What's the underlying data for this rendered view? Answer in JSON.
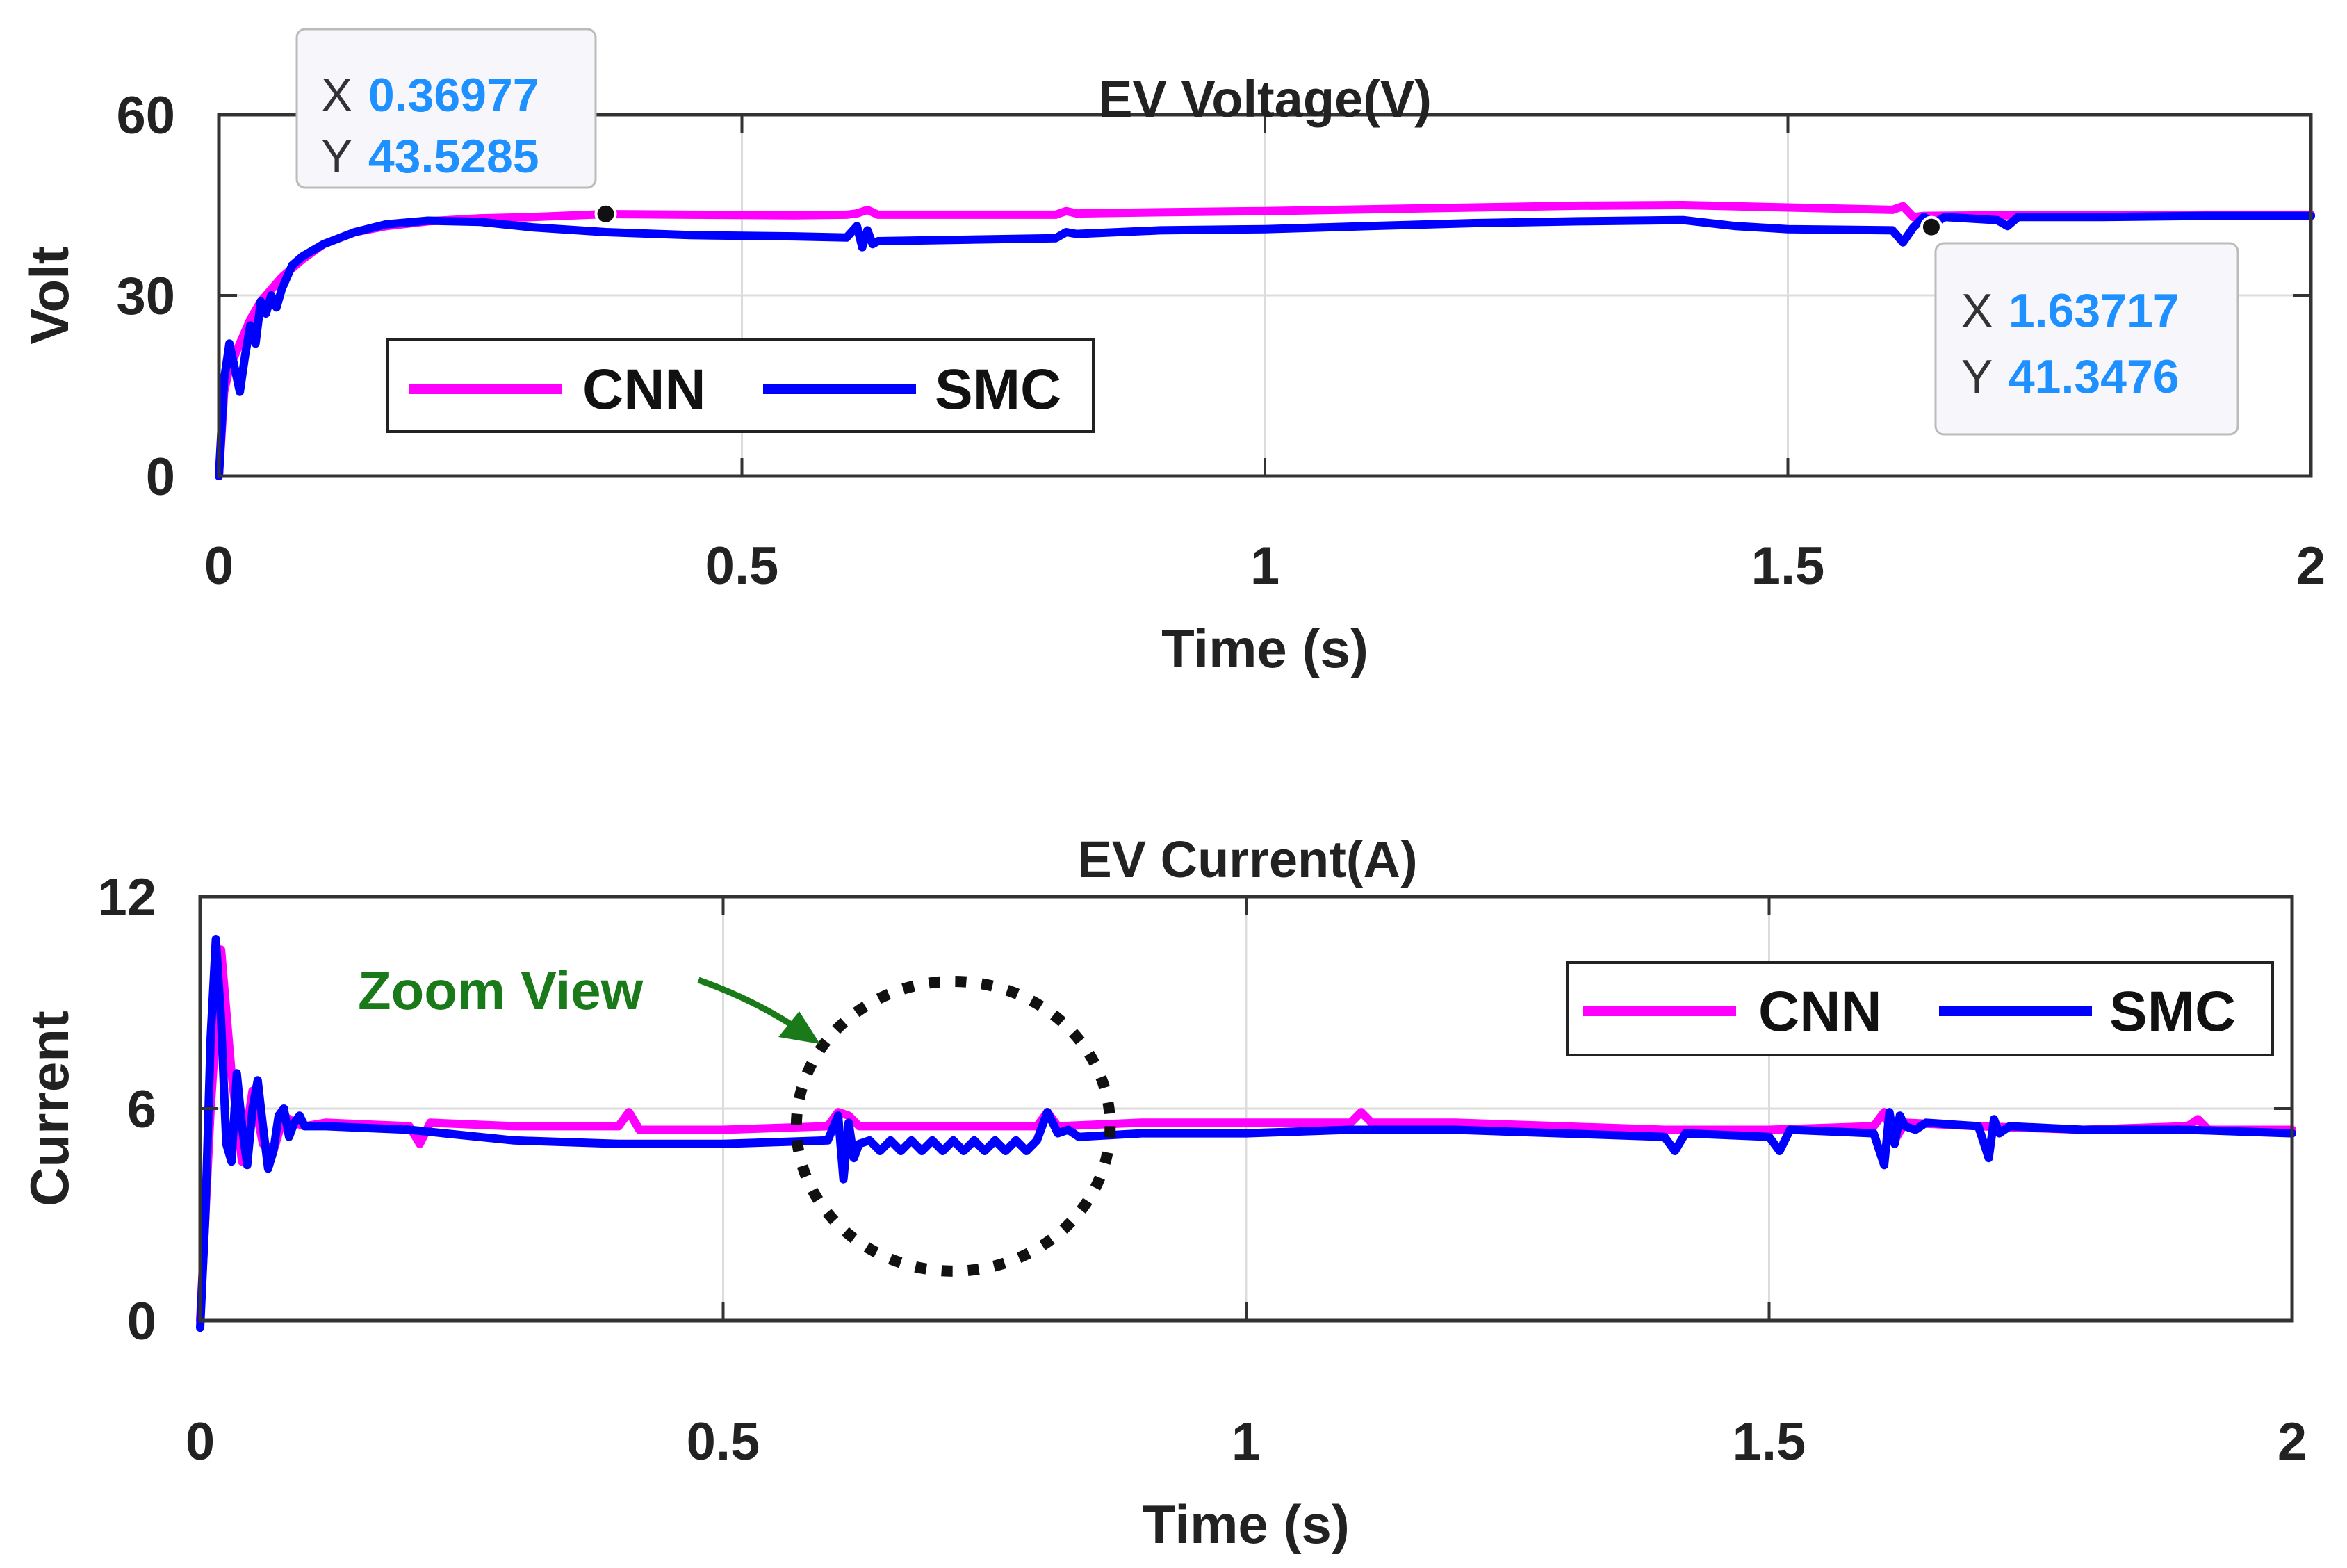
{
  "chart_data": [
    {
      "type": "line",
      "title": "EV Voltage(V)",
      "xlabel": "Time (s)",
      "ylabel": "Volt",
      "xlim": [
        0,
        2
      ],
      "ylim": [
        0,
        60
      ],
      "xticks": [
        0,
        0.5,
        1,
        1.5,
        2
      ],
      "xtick_labels": [
        "0",
        "0.5",
        "1",
        "1.5",
        "2"
      ],
      "yticks": [
        0,
        30,
        60
      ],
      "ytick_labels": [
        "0",
        "30",
        "60"
      ],
      "grid": true,
      "legend_position": "middle-left",
      "series": [
        {
          "name": "CNN",
          "color": "#ff00ff",
          "x": [
            0,
            0.005,
            0.01,
            0.02,
            0.03,
            0.04,
            0.05,
            0.06,
            0.08,
            0.1,
            0.13,
            0.16,
            0.2,
            0.25,
            0.3,
            0.37,
            0.45,
            0.55,
            0.6,
            0.61,
            0.62,
            0.63,
            0.7,
            0.8,
            0.81,
            0.82,
            0.9,
            1.0,
            1.1,
            1.2,
            1.3,
            1.4,
            1.5,
            1.6,
            1.61,
            1.62,
            1.63,
            1.7,
            1.8,
            1.9,
            2.0
          ],
          "y": [
            0,
            14,
            18,
            22,
            26,
            29,
            31,
            33,
            36,
            38.5,
            40.5,
            41.5,
            42.3,
            42.8,
            43.0,
            43.5,
            43.4,
            43.3,
            43.4,
            43.6,
            44.2,
            43.4,
            43.4,
            43.4,
            44.0,
            43.6,
            43.8,
            44.0,
            44.3,
            44.6,
            44.9,
            45.0,
            44.6,
            44.2,
            44.8,
            43.0,
            43.2,
            43.3,
            43.3,
            43.4,
            43.4
          ]
        },
        {
          "name": "SMC",
          "color": "#0000ff",
          "x": [
            0,
            0.005,
            0.01,
            0.015,
            0.02,
            0.025,
            0.03,
            0.035,
            0.04,
            0.045,
            0.05,
            0.055,
            0.06,
            0.065,
            0.07,
            0.08,
            0.1,
            0.13,
            0.16,
            0.2,
            0.25,
            0.3,
            0.37,
            0.45,
            0.55,
            0.6,
            0.61,
            0.615,
            0.62,
            0.625,
            0.63,
            0.7,
            0.8,
            0.81,
            0.82,
            0.9,
            1.0,
            1.1,
            1.2,
            1.3,
            1.4,
            1.45,
            1.5,
            1.6,
            1.61,
            1.62,
            1.63,
            1.64,
            1.65,
            1.7,
            1.71,
            1.72,
            1.8,
            1.9,
            2.0
          ],
          "y": [
            0,
            16,
            22,
            18,
            14,
            20,
            25,
            22,
            29,
            27,
            30,
            28,
            31,
            33,
            35,
            36.5,
            38.5,
            40.5,
            41.8,
            42.4,
            42.2,
            41.3,
            40.5,
            40.0,
            39.8,
            39.6,
            41.5,
            38.0,
            40.8,
            38.5,
            39.0,
            39.2,
            39.5,
            40.5,
            40.2,
            40.8,
            41.0,
            41.5,
            42.0,
            42.3,
            42.5,
            41.5,
            41.0,
            40.8,
            38.8,
            41.3,
            43.0,
            42.0,
            43.0,
            42.5,
            41.5,
            43.0,
            43.0,
            43.2,
            43.2
          ]
        }
      ],
      "datatips": [
        {
          "x_label": "X",
          "x_value": "0.36977",
          "y_label": "Y",
          "y_value": "43.5285",
          "x": 0.36977,
          "y": 43.5285
        },
        {
          "x_label": "X",
          "x_value": "1.63717",
          "y_label": "Y",
          "y_value": "41.3476",
          "x": 1.63717,
          "y": 41.3476
        }
      ]
    },
    {
      "type": "line",
      "title": "EV Current(A)",
      "xlabel": "Time (s)",
      "ylabel": "Current",
      "xlim": [
        0,
        2
      ],
      "ylim": [
        0,
        12
      ],
      "xticks": [
        0,
        0.5,
        1,
        1.5,
        2
      ],
      "xtick_labels": [
        "0",
        "0.5",
        "1",
        "1.5",
        "2"
      ],
      "yticks": [
        0,
        6,
        12
      ],
      "ytick_labels": [
        "0",
        "6",
        "12"
      ],
      "grid": true,
      "legend_position": "top-right",
      "annotation": {
        "text": "Zoom View",
        "circle_center": [
          0.72,
          5.5
        ],
        "circle_radius_x": 0.15,
        "circle_radius_y": 4.1
      },
      "series": [
        {
          "name": "CNN",
          "color": "#ff00ff",
          "x": [
            0,
            0.01,
            0.02,
            0.03,
            0.04,
            0.05,
            0.06,
            0.07,
            0.08,
            0.09,
            0.1,
            0.12,
            0.2,
            0.21,
            0.22,
            0.3,
            0.4,
            0.41,
            0.42,
            0.5,
            0.6,
            0.61,
            0.62,
            0.63,
            0.7,
            0.8,
            0.81,
            0.82,
            0.9,
            1.0,
            1.1,
            1.11,
            1.12,
            1.2,
            1.3,
            1.4,
            1.5,
            1.6,
            1.61,
            1.62,
            1.63,
            1.7,
            1.8,
            1.9,
            1.91,
            1.92,
            2.0
          ],
          "y": [
            0,
            6.0,
            10.5,
            7.0,
            4.5,
            6.5,
            5.0,
            4.8,
            5.8,
            5.6,
            5.5,
            5.6,
            5.5,
            5.0,
            5.6,
            5.5,
            5.5,
            5.9,
            5.4,
            5.4,
            5.5,
            5.9,
            5.8,
            5.5,
            5.5,
            5.5,
            5.9,
            5.5,
            5.6,
            5.6,
            5.6,
            5.9,
            5.6,
            5.6,
            5.5,
            5.4,
            5.4,
            5.5,
            5.9,
            5.1,
            5.6,
            5.5,
            5.4,
            5.5,
            5.7,
            5.4,
            5.4
          ]
        },
        {
          "name": "SMC",
          "color": "#0000ff",
          "x": [
            0,
            0.005,
            0.01,
            0.015,
            0.02,
            0.025,
            0.03,
            0.035,
            0.04,
            0.045,
            0.05,
            0.055,
            0.06,
            0.065,
            0.07,
            0.075,
            0.08,
            0.085,
            0.09,
            0.095,
            0.1,
            0.12,
            0.2,
            0.3,
            0.4,
            0.5,
            0.6,
            0.61,
            0.615,
            0.62,
            0.625,
            0.63,
            0.64,
            0.65,
            0.66,
            0.67,
            0.68,
            0.69,
            0.7,
            0.71,
            0.72,
            0.73,
            0.74,
            0.75,
            0.76,
            0.77,
            0.78,
            0.79,
            0.8,
            0.81,
            0.82,
            0.83,
            0.84,
            0.9,
            1.0,
            1.1,
            1.2,
            1.3,
            1.4,
            1.41,
            1.42,
            1.5,
            1.51,
            1.52,
            1.6,
            1.61,
            1.615,
            1.62,
            1.625,
            1.63,
            1.64,
            1.65,
            1.7,
            1.71,
            1.715,
            1.72,
            1.73,
            1.8,
            1.9,
            2.0
          ],
          "y": [
            -0.2,
            3.0,
            8.0,
            10.8,
            8.5,
            5.0,
            4.5,
            7.0,
            5.5,
            4.4,
            6.0,
            6.8,
            5.5,
            4.3,
            4.8,
            5.8,
            6.0,
            5.2,
            5.6,
            5.8,
            5.5,
            5.5,
            5.4,
            5.1,
            5.0,
            5.0,
            5.1,
            5.8,
            4.0,
            5.6,
            4.6,
            5.0,
            5.1,
            4.8,
            5.1,
            4.8,
            5.1,
            4.8,
            5.1,
            4.8,
            5.1,
            4.8,
            5.1,
            4.8,
            5.1,
            4.8,
            5.1,
            4.8,
            5.1,
            5.9,
            5.3,
            5.4,
            5.2,
            5.3,
            5.3,
            5.4,
            5.4,
            5.3,
            5.2,
            4.8,
            5.3,
            5.2,
            4.8,
            5.4,
            5.3,
            4.4,
            5.9,
            5.0,
            5.8,
            5.5,
            5.4,
            5.6,
            5.5,
            4.6,
            5.7,
            5.3,
            5.5,
            5.4,
            5.4,
            5.3
          ]
        }
      ]
    }
  ]
}
